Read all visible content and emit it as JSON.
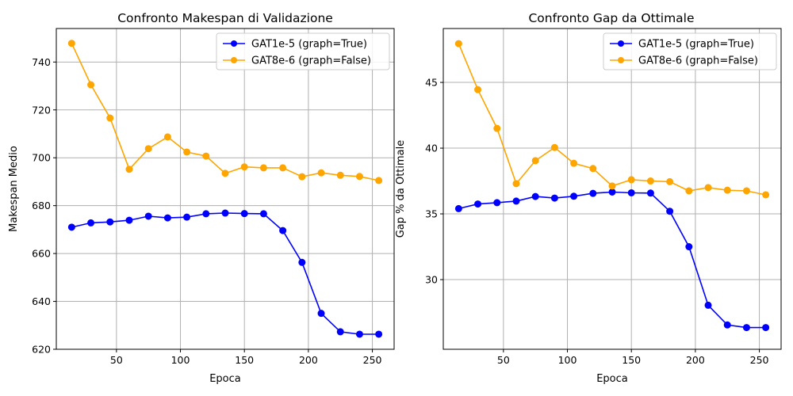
{
  "chart_data": [
    {
      "type": "line",
      "title": "Confronto Makespan di Validazione",
      "xlabel": "Epoca",
      "ylabel": "Makespan Medio",
      "xlim": [
        3,
        267
      ],
      "ylim": [
        620,
        754
      ],
      "xticks": [
        50,
        100,
        150,
        200,
        250
      ],
      "yticks": [
        620,
        640,
        660,
        680,
        700,
        720,
        740
      ],
      "grid": true,
      "legend_position": "top-right",
      "x": [
        15,
        30,
        45,
        60,
        75,
        90,
        105,
        120,
        135,
        150,
        165,
        180,
        195,
        210,
        225,
        240,
        255
      ],
      "series": [
        {
          "name": "GAT1e-5 (graph=True)",
          "color": "#0000ff",
          "values": [
            671.0,
            672.8,
            673.2,
            673.9,
            675.6,
            674.9,
            675.2,
            676.6,
            676.9,
            676.7,
            676.6,
            669.6,
            656.3,
            635.0,
            627.3,
            626.3,
            626.3
          ]
        },
        {
          "name": "GAT8e-6 (graph=False)",
          "color": "#ffa500",
          "values": [
            747.8,
            730.5,
            716.6,
            695.2,
            703.8,
            708.7,
            702.4,
            700.7,
            693.5,
            696.2,
            695.8,
            695.8,
            692.1,
            693.7,
            692.7,
            692.2,
            690.5
          ]
        }
      ]
    },
    {
      "type": "line",
      "title": "Confronto Gap da Ottimale",
      "xlabel": "Epoca",
      "ylabel": "Gap % da Ottimale",
      "xlim": [
        3,
        267
      ],
      "ylim": [
        24.7,
        49.1
      ],
      "xticks": [
        50,
        100,
        150,
        200,
        250
      ],
      "yticks": [
        30,
        35,
        40,
        45
      ],
      "grid": true,
      "legend_position": "top-right",
      "x": [
        15,
        30,
        45,
        60,
        75,
        90,
        105,
        120,
        135,
        150,
        165,
        180,
        195,
        210,
        225,
        240,
        255
      ],
      "series": [
        {
          "name": "GAT1e-5 (graph=True)",
          "color": "#0000ff",
          "values": [
            35.4,
            35.75,
            35.85,
            35.97,
            36.32,
            36.2,
            36.34,
            36.56,
            36.66,
            36.6,
            36.58,
            35.2,
            32.5,
            28.05,
            26.55,
            26.35,
            26.35
          ]
        },
        {
          "name": "GAT8e-6 (graph=False)",
          "color": "#ffa500",
          "values": [
            47.95,
            44.45,
            41.5,
            37.3,
            39.05,
            40.05,
            38.85,
            38.45,
            37.12,
            37.6,
            37.5,
            37.45,
            36.75,
            37.0,
            36.8,
            36.75,
            36.45
          ]
        }
      ]
    }
  ]
}
